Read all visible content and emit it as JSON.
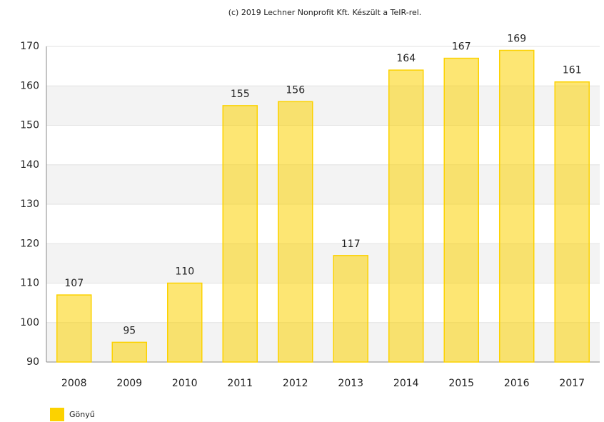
{
  "chart_data": {
    "type": "bar",
    "title": "(c) 2019 Lechner Nonprofit Kft. Készült a TeIR-rel.",
    "categories": [
      "2008",
      "2009",
      "2010",
      "2011",
      "2012",
      "2013",
      "2014",
      "2015",
      "2016",
      "2017"
    ],
    "series": [
      {
        "name": "Gönyű",
        "color": "#fcd200",
        "values": [
          107,
          95,
          110,
          155,
          156,
          117,
          164,
          167,
          169,
          161
        ]
      }
    ],
    "ylim": [
      90,
      170
    ],
    "yticks": [
      90,
      100,
      110,
      120,
      130,
      140,
      150,
      160,
      170
    ],
    "grid": true,
    "legend": "bottom-left"
  }
}
